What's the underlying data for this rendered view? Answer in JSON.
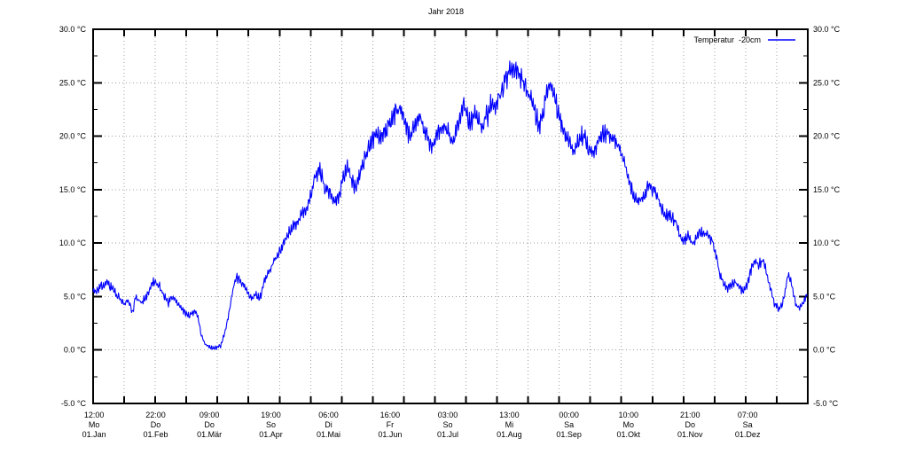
{
  "title": "Jahr 2018",
  "legend": {
    "label": "Temperatur  -20cm"
  },
  "colors": {
    "line": "#0000ff",
    "grid": "#a0a0a0",
    "axis": "#000000",
    "background": "#ffffff",
    "text": "#000000"
  },
  "chart_data": {
    "type": "line",
    "title": "Jahr 2018",
    "grid": true,
    "legend_position": "top-right-inside",
    "y_axis": {
      "min": -5.0,
      "max": 30.0,
      "major_step": 5.0,
      "minor_step": 2.5,
      "unit": "°C",
      "labels_top_to_bottom": [
        "30.0 °C",
        "25.0 °C",
        "20.0 °C",
        "15.0 °C",
        "10.0 °C",
        "5.0 °C",
        "0.0 °C",
        "-5.0 °C"
      ],
      "mirrored_right": true
    },
    "x_axis": {
      "year_span_days": 365,
      "ticks": [
        {
          "time": "12:00",
          "weekday": "Mo",
          "date": "01.Jan",
          "doy": 1,
          "hour": 12
        },
        {
          "time": "22:00",
          "weekday": "Do",
          "date": "01.Feb",
          "doy": 32,
          "hour": 22
        },
        {
          "time": "09:00",
          "weekday": "Do",
          "date": "01.Mär",
          "doy": 60,
          "hour": 9
        },
        {
          "time": "19:00",
          "weekday": "So",
          "date": "01.Apr",
          "doy": 91,
          "hour": 19
        },
        {
          "time": "06:00",
          "weekday": "Di",
          "date": "01.Mai",
          "doy": 121,
          "hour": 6
        },
        {
          "time": "16:00",
          "weekday": "Fr",
          "date": "01.Jun",
          "doy": 152,
          "hour": 16
        },
        {
          "time": "03:00",
          "weekday": "So",
          "date": "01.Jul",
          "doy": 182,
          "hour": 3
        },
        {
          "time": "13:00",
          "weekday": "Mi",
          "date": "01.Aug",
          "doy": 213,
          "hour": 13
        },
        {
          "time": "00:00",
          "weekday": "Sa",
          "date": "01.Sep",
          "doy": 244,
          "hour": 0
        },
        {
          "time": "10:00",
          "weekday": "Mo",
          "date": "01.Okt",
          "doy": 274,
          "hour": 10
        },
        {
          "time": "21:00",
          "weekday": "Do",
          "date": "01.Nov",
          "doy": 305,
          "hour": 21
        },
        {
          "time": "07:00",
          "weekday": "Sa",
          "date": "01.Dez",
          "doy": 335,
          "hour": 7
        }
      ],
      "minor_tick_intervals": 23
    },
    "series": [
      {
        "name": "Temperatur -20cm",
        "color": "#0000ff",
        "unit": "°C",
        "keypoints_doy_temp": [
          [
            1,
            5.4
          ],
          [
            3,
            5.6
          ],
          [
            5,
            5.9
          ],
          [
            8,
            6.3
          ],
          [
            11,
            5.7
          ],
          [
            14,
            5.0
          ],
          [
            17,
            4.3
          ],
          [
            19,
            4.6
          ],
          [
            21,
            3.6
          ],
          [
            23,
            4.9
          ],
          [
            26,
            4.4
          ],
          [
            29,
            5.4
          ],
          [
            32,
            6.5
          ],
          [
            34,
            6.0
          ],
          [
            36,
            5.6
          ],
          [
            39,
            4.5
          ],
          [
            41,
            5.0
          ],
          [
            43,
            4.6
          ],
          [
            45,
            4.2
          ],
          [
            48,
            3.5
          ],
          [
            50,
            3.2
          ],
          [
            53,
            3.6
          ],
          [
            55,
            2.8
          ],
          [
            56,
            1.6
          ],
          [
            58,
            0.6
          ],
          [
            60,
            0.3
          ],
          [
            62,
            0.2
          ],
          [
            64,
            0.2
          ],
          [
            66,
            0.4
          ],
          [
            68,
            1.4
          ],
          [
            70,
            3.0
          ],
          [
            72,
            5.2
          ],
          [
            74,
            6.8
          ],
          [
            76,
            6.5
          ],
          [
            78,
            6.0
          ],
          [
            80,
            5.5
          ],
          [
            82,
            4.7
          ],
          [
            84,
            5.2
          ],
          [
            86,
            4.8
          ],
          [
            88,
            6.0
          ],
          [
            90,
            7.0
          ],
          [
            91,
            7.3
          ],
          [
            93,
            8.2
          ],
          [
            95,
            8.8
          ],
          [
            97,
            9.3
          ],
          [
            100,
            10.8
          ],
          [
            103,
            11.5
          ],
          [
            106,
            12.2
          ],
          [
            109,
            13.0
          ],
          [
            111,
            13.6
          ],
          [
            113,
            15.2
          ],
          [
            115,
            16.6
          ],
          [
            117,
            16.8
          ],
          [
            119,
            15.2
          ],
          [
            121,
            15.0
          ],
          [
            123,
            14.5
          ],
          [
            125,
            13.9
          ],
          [
            127,
            14.8
          ],
          [
            129,
            16.3
          ],
          [
            131,
            17.0
          ],
          [
            133,
            16.0
          ],
          [
            135,
            15.1
          ],
          [
            137,
            16.2
          ],
          [
            139,
            17.4
          ],
          [
            141,
            18.6
          ],
          [
            143,
            19.2
          ],
          [
            145,
            20.3
          ],
          [
            147,
            20.0
          ],
          [
            149,
            20.4
          ],
          [
            151,
            20.9
          ],
          [
            152,
            21.1
          ],
          [
            154,
            21.8
          ],
          [
            156,
            22.4
          ],
          [
            158,
            22.7
          ],
          [
            160,
            21.7
          ],
          [
            162,
            20.1
          ],
          [
            164,
            20.8
          ],
          [
            166,
            21.3
          ],
          [
            168,
            21.7
          ],
          [
            170,
            20.9
          ],
          [
            172,
            19.9
          ],
          [
            174,
            18.8
          ],
          [
            176,
            19.8
          ],
          [
            178,
            20.6
          ],
          [
            180,
            21.0
          ],
          [
            182,
            20.7
          ],
          [
            184,
            19.3
          ],
          [
            186,
            20.2
          ],
          [
            188,
            21.5
          ],
          [
            190,
            22.9
          ],
          [
            192,
            22.0
          ],
          [
            194,
            21.3
          ],
          [
            196,
            22.1
          ],
          [
            198,
            21.2
          ],
          [
            200,
            20.9
          ],
          [
            202,
            22.2
          ],
          [
            204,
            22.8
          ],
          [
            206,
            23.0
          ],
          [
            208,
            23.7
          ],
          [
            210,
            24.6
          ],
          [
            212,
            25.4
          ],
          [
            213,
            25.8
          ],
          [
            215,
            26.4
          ],
          [
            217,
            26.2
          ],
          [
            219,
            25.6
          ],
          [
            221,
            25.0
          ],
          [
            223,
            24.2
          ],
          [
            225,
            23.2
          ],
          [
            227,
            22.0
          ],
          [
            229,
            21.1
          ],
          [
            231,
            22.3
          ],
          [
            233,
            24.2
          ],
          [
            235,
            24.7
          ],
          [
            237,
            23.2
          ],
          [
            239,
            21.8
          ],
          [
            241,
            20.6
          ],
          [
            243,
            19.7
          ],
          [
            244,
            19.4
          ],
          [
            246,
            18.6
          ],
          [
            248,
            19.2
          ],
          [
            250,
            20.0
          ],
          [
            252,
            20.1
          ],
          [
            254,
            18.8
          ],
          [
            256,
            18.4
          ],
          [
            258,
            19.1
          ],
          [
            260,
            19.9
          ],
          [
            262,
            20.2
          ],
          [
            264,
            20.4
          ],
          [
            266,
            19.9
          ],
          [
            268,
            19.3
          ],
          [
            270,
            18.8
          ],
          [
            272,
            17.6
          ],
          [
            274,
            16.3
          ],
          [
            276,
            15.1
          ],
          [
            278,
            14.2
          ],
          [
            280,
            13.9
          ],
          [
            282,
            14.4
          ],
          [
            284,
            15.1
          ],
          [
            286,
            15.2
          ],
          [
            288,
            14.8
          ],
          [
            290,
            14.0
          ],
          [
            292,
            13.0
          ],
          [
            294,
            12.5
          ],
          [
            296,
            12.8
          ],
          [
            298,
            12.0
          ],
          [
            300,
            11.0
          ],
          [
            302,
            10.2
          ],
          [
            304,
            10.4
          ],
          [
            305,
            10.7
          ],
          [
            307,
            10.0
          ],
          [
            309,
            10.4
          ],
          [
            311,
            11.0
          ],
          [
            313,
            11.1
          ],
          [
            315,
            10.7
          ],
          [
            317,
            10.3
          ],
          [
            319,
            9.0
          ],
          [
            321,
            7.2
          ],
          [
            323,
            6.3
          ],
          [
            325,
            5.8
          ],
          [
            327,
            6.1
          ],
          [
            329,
            6.3
          ],
          [
            331,
            5.8
          ],
          [
            333,
            5.5
          ],
          [
            335,
            6.0
          ],
          [
            337,
            7.5
          ],
          [
            339,
            8.4
          ],
          [
            341,
            8.0
          ],
          [
            343,
            8.5
          ],
          [
            345,
            7.2
          ],
          [
            347,
            5.8
          ],
          [
            349,
            4.3
          ],
          [
            351,
            3.9
          ],
          [
            353,
            4.2
          ],
          [
            355,
            6.2
          ],
          [
            356,
            7.0
          ],
          [
            358,
            6.0
          ],
          [
            360,
            4.2
          ],
          [
            362,
            3.9
          ],
          [
            364,
            4.6
          ],
          [
            365,
            5.1
          ]
        ],
        "noise": {
          "diurnal_base": 0.12,
          "diurnal_per_deg": 0.022,
          "random_base": 0.08,
          "random_per_deg": 0.02
        }
      }
    ]
  }
}
